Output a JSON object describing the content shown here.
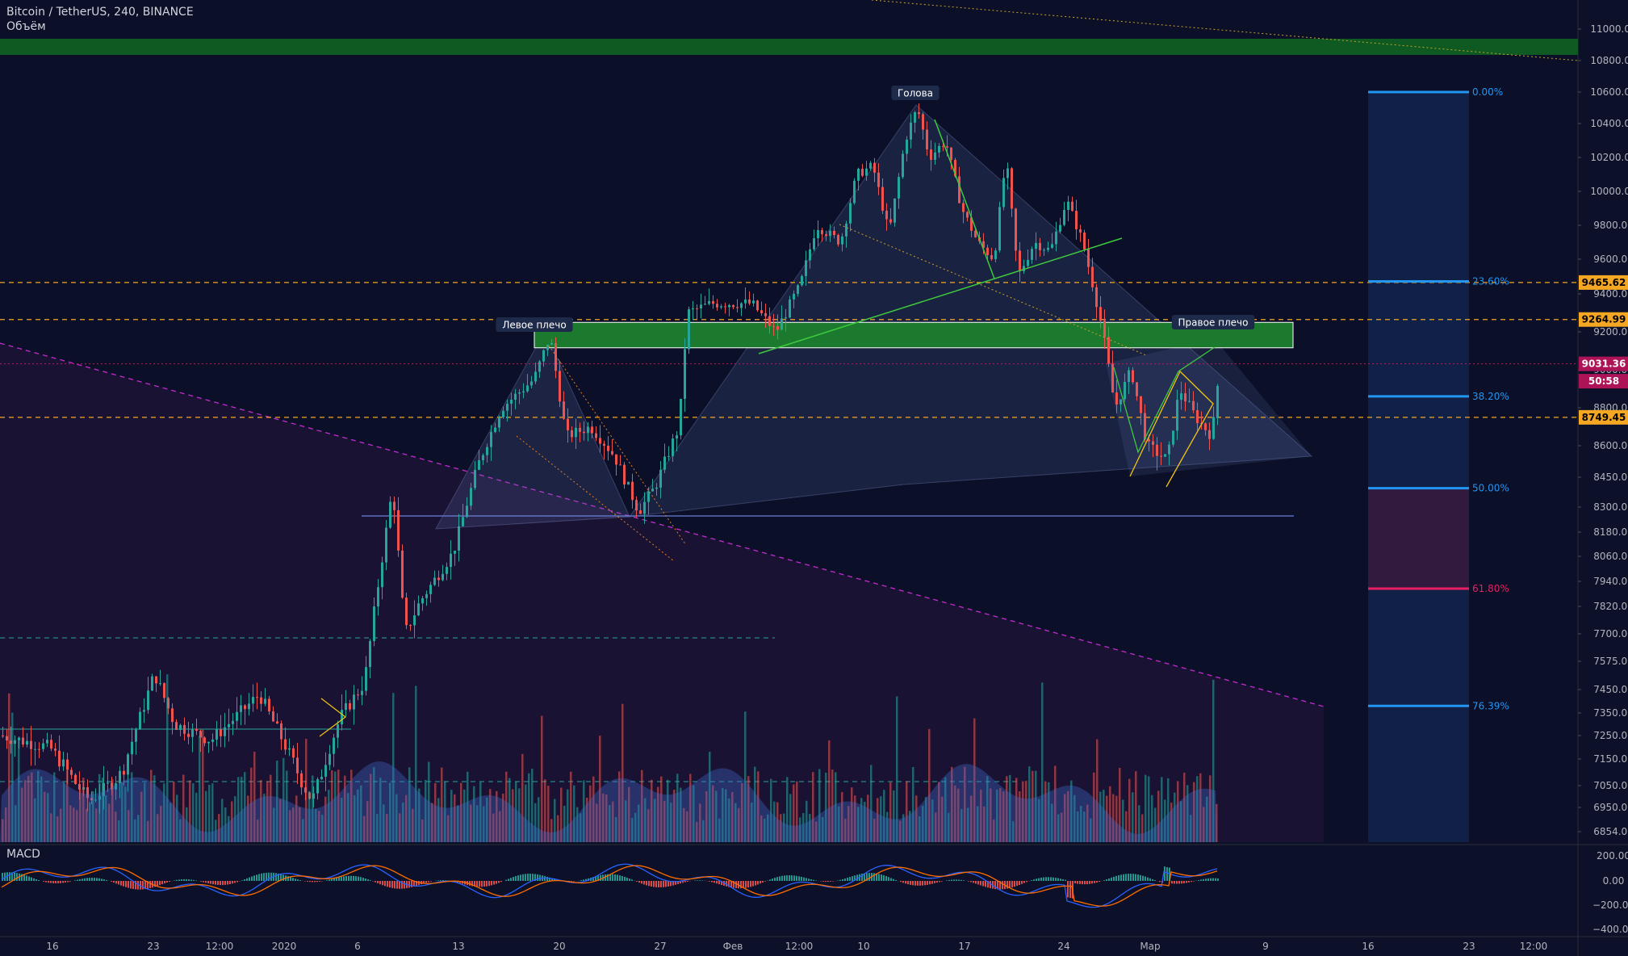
{
  "header": {
    "symbol_line": "Bitcoin / TetherUS, 240, BINANCE",
    "volume_label": "Объём"
  },
  "macd_label": "MACD",
  "colors": {
    "background": "#0c1028",
    "up": "#26a69a",
    "down": "#ef5350",
    "accent_green_zone": "#1b5e20",
    "fib_line": "#2196f3",
    "fib_red": "#e91e63",
    "price_tag_orange": "#f5a623",
    "current_price_tag": "#ad1457"
  },
  "annotations": {
    "head": "Голова",
    "left_shoulder": "Левое плечо",
    "right_shoulder": "Правое плечо"
  },
  "price_tags": [
    {
      "label": "9465.62",
      "price": 9465.62,
      "kind": "orange"
    },
    {
      "label": "9264.99",
      "price": 9264.99,
      "kind": "orange"
    },
    {
      "label": "9031.36",
      "price": 9031.36,
      "kind": "current"
    },
    {
      "label": "50:58",
      "price": 8940,
      "kind": "timer"
    },
    {
      "label": "8749.45",
      "price": 8749.45,
      "kind": "orange"
    }
  ],
  "fib_levels": [
    {
      "label": "0.00%",
      "price": 10600,
      "color": "#2196f3"
    },
    {
      "label": "23.60%",
      "price": 9472,
      "color": "#2196f3"
    },
    {
      "label": "38.20%",
      "price": 8860,
      "color": "#2196f3"
    },
    {
      "label": "50.00%",
      "price": 8395,
      "color": "#2196f3"
    },
    {
      "label": "61.80%",
      "price": 7905,
      "color": "#e91e63"
    },
    {
      "label": "76.39%",
      "price": 7380,
      "color": "#2196f3"
    }
  ],
  "chart_data": [
    {
      "type": "candlestick",
      "title": "Bitcoin / TetherUS, 240, BINANCE",
      "y_axis_ticks": [
        "11000.00",
        "10800.00",
        "10600.00",
        "10400.00",
        "10200.00",
        "10000.00",
        "9800.00",
        "9600.00",
        "9400.00",
        "9200.00",
        "9000.00",
        "8800.00",
        "8600.00",
        "8450.00",
        "8300.00",
        "8180.00",
        "8060.00",
        "7940.00",
        "7820.00",
        "7700.00",
        "7575.00",
        "7450.00",
        "7350.00",
        "7250.00",
        "7150.00",
        "7050.00",
        "6950.00",
        "6854.00"
      ],
      "x_axis_ticks": [
        "16",
        "23",
        "12:00",
        "2020",
        "6",
        "13",
        "20",
        "27",
        "Фев",
        "12:00",
        "10",
        "17",
        "24",
        "Мар",
        "9",
        "16",
        "23",
        "12:00"
      ],
      "key_points": [
        {
          "date": "16",
          "price": 7200
        },
        {
          "date": "23",
          "price": 7350
        },
        {
          "date": "2020",
          "price": 7150
        },
        {
          "date": "6",
          "price": 7800
        },
        {
          "date": "13",
          "price": 8650
        },
        {
          "date": "20",
          "price": 9150
        },
        {
          "date": "27",
          "price": 8300
        },
        {
          "date": "Фев",
          "price": 9350
        },
        {
          "date": "12:00",
          "price": 9800
        },
        {
          "date": "10",
          "price": 10500
        },
        {
          "date": "17",
          "price": 9700
        },
        {
          "date": "24",
          "price": 9900
        },
        {
          "date": "Мар",
          "price": 8500
        },
        {
          "date": "current",
          "price": 9031.36
        }
      ],
      "horizontal_levels": [
        9465.62,
        9264.99,
        8749.45
      ],
      "support_zone": [
        10850,
        10950
      ],
      "resistance_zone": [
        9150,
        9250
      ]
    },
    {
      "type": "line",
      "title": "MACD",
      "y_axis_ticks": [
        "200.00",
        "0.00",
        "−200.00",
        "−400.00"
      ]
    }
  ]
}
